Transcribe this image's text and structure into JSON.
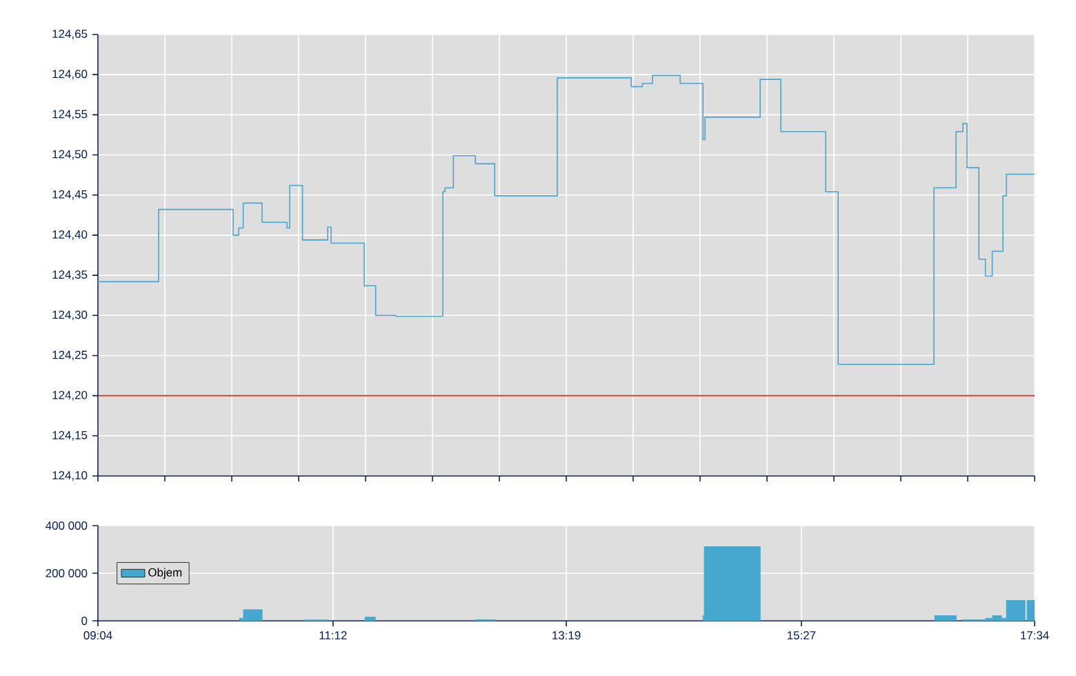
{
  "chart_data": [
    {
      "type": "step",
      "color": "#4aa3cc",
      "x": [
        9.0667,
        9.617,
        10.294,
        10.344,
        10.385,
        10.556,
        10.782,
        10.807,
        10.923,
        11.152,
        11.182,
        11.483,
        11.587,
        11.771,
        12.196,
        12.216,
        12.292,
        12.492,
        12.667,
        13.235,
        13.906,
        14.007,
        14.099,
        14.35,
        14.557,
        14.575,
        15.076,
        15.264,
        15.671,
        15.784,
        16.653,
        16.853,
        16.916,
        16.953,
        17.061,
        17.12,
        17.182,
        17.279,
        17.311,
        17.5667
      ],
      "values": [
        124.342,
        124.432,
        124.4,
        124.409,
        124.44,
        124.416,
        124.409,
        124.462,
        124.394,
        124.41,
        124.39,
        124.337,
        124.3,
        124.299,
        124.454,
        124.459,
        124.499,
        124.489,
        124.449,
        124.596,
        124.585,
        124.589,
        124.599,
        124.589,
        124.519,
        124.547,
        124.594,
        124.529,
        124.454,
        124.239,
        124.459,
        124.529,
        124.539,
        124.484,
        124.37,
        124.349,
        124.38,
        124.449,
        124.476,
        124.476
      ],
      "xlim": [
        9.0667,
        17.5667
      ],
      "xticks": [
        {
          "value": 9.0667,
          "label": null
        },
        {
          "value": 9.6738,
          "label": null
        },
        {
          "value": 10.281,
          "label": null
        },
        {
          "value": 10.8881,
          "label": null
        },
        {
          "value": 11.4952,
          "label": null
        },
        {
          "value": 12.1024,
          "label": null
        },
        {
          "value": 12.7095,
          "label": null
        },
        {
          "value": 13.3167,
          "label": null
        },
        {
          "value": 13.9238,
          "label": null
        },
        {
          "value": 14.531,
          "label": null
        },
        {
          "value": 15.1381,
          "label": null
        },
        {
          "value": 15.7452,
          "label": null
        },
        {
          "value": 16.3524,
          "label": null
        },
        {
          "value": 16.9595,
          "label": null
        },
        {
          "value": 17.5667,
          "label": null
        }
      ],
      "ylim": [
        124.1,
        124.65
      ],
      "yticks": [
        {
          "value": 124.1,
          "label": "124,10"
        },
        {
          "value": 124.15,
          "label": "124,15"
        },
        {
          "value": 124.2,
          "label": "124,20"
        },
        {
          "value": 124.25,
          "label": "124,25"
        },
        {
          "value": 124.3,
          "label": "124,30"
        },
        {
          "value": 124.35,
          "label": "124,35"
        },
        {
          "value": 124.4,
          "label": "124,40"
        },
        {
          "value": 124.45,
          "label": "124,45"
        },
        {
          "value": 124.5,
          "label": "124,50"
        },
        {
          "value": 124.55,
          "label": "124,55"
        },
        {
          "value": 124.6,
          "label": "124,60"
        },
        {
          "value": 124.65,
          "label": "124,65"
        }
      ],
      "tick_labels": "y",
      "grid": true,
      "ref_lines": [
        {
          "axis": "y",
          "value": 124.2,
          "color": "#dd2020"
        }
      ]
    },
    {
      "type": "histogram",
      "bins": [
        10.347,
        10.385,
        10.56,
        10.936,
        11.161,
        11.487,
        11.587,
        12.488,
        12.676,
        14.554,
        14.566,
        15.08,
        16.657,
        16.858,
        16.908,
        17.12,
        17.183,
        17.27,
        17.308,
        17.483,
        17.496,
        17.5667
      ],
      "series": [
        {
          "name": "Objem",
          "color": "#46a7cf",
          "values": [
            12000,
            48000,
            0,
            5000,
            0,
            17000,
            0,
            6000,
            0,
            23000,
            313000,
            0,
            23000,
            0,
            6000,
            12000,
            23000,
            12000,
            87000,
            0,
            87000
          ]
        }
      ],
      "xlim": [
        9.0667,
        17.5667
      ],
      "xticks": [
        {
          "value": 9.0667,
          "label": "09:04"
        },
        {
          "value": 11.2,
          "label": "11:12"
        },
        {
          "value": 13.3167,
          "label": "13:19"
        },
        {
          "value": 15.45,
          "label": "15:27"
        },
        {
          "value": 17.5667,
          "label": "17:34"
        }
      ],
      "ylim": [
        0,
        400000
      ],
      "yticks": [
        {
          "value": 0,
          "label": "0"
        },
        {
          "value": 200000,
          "label": "200 000"
        },
        {
          "value": 400000,
          "label": "400 000"
        }
      ],
      "grid": true,
      "legend": "left"
    }
  ]
}
